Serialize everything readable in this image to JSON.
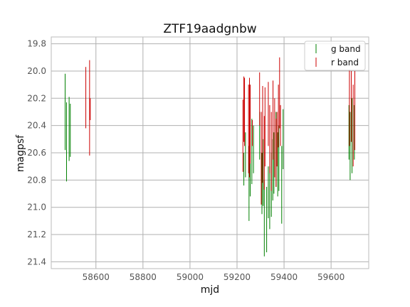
{
  "chart_data": {
    "type": "scatter",
    "title": "ZTF19aadgnbw",
    "xlabel": "mjd",
    "ylabel": "magpsf",
    "xlim": [
      58410,
      59760
    ],
    "ylim": [
      21.45,
      19.75
    ],
    "y_inverted": true,
    "grid": true,
    "legend_position": "top-right",
    "x_ticks": [
      58600,
      58800,
      59000,
      59200,
      59400,
      59600
    ],
    "y_ticks": [
      19.8,
      20.0,
      20.2,
      20.4,
      20.6,
      20.8,
      21.0,
      21.2,
      21.4
    ],
    "x_tick_labels": [
      "58600",
      "58800",
      "59000",
      "59200",
      "59400",
      "59600"
    ],
    "y_tick_labels": [
      "19.8",
      "20.0",
      "20.2",
      "20.4",
      "20.6",
      "20.8",
      "21.0",
      "21.2",
      "21.4"
    ],
    "series": [
      {
        "name": "g band",
        "color": "#008000",
        "marker": "vertical-errorbar",
        "points": [
          {
            "x": 58469,
            "lo": 20.02,
            "hi": 20.58
          },
          {
            "x": 58475,
            "lo": 20.23,
            "hi": 20.81
          },
          {
            "x": 58486,
            "lo": 20.19,
            "hi": 20.66
          },
          {
            "x": 58491,
            "lo": 20.24,
            "hi": 20.63
          },
          {
            "x": 59229,
            "lo": 20.6,
            "hi": 20.84
          },
          {
            "x": 59236,
            "lo": 20.45,
            "hi": 20.78
          },
          {
            "x": 59251,
            "lo": 20.55,
            "hi": 21.1
          },
          {
            "x": 59256,
            "lo": 20.5,
            "hi": 20.92
          },
          {
            "x": 59263,
            "lo": 20.35,
            "hi": 20.83
          },
          {
            "x": 59270,
            "lo": 20.4,
            "hi": 20.75
          },
          {
            "x": 59296,
            "lo": 20.3,
            "hi": 20.65
          },
          {
            "x": 59306,
            "lo": 20.6,
            "hi": 21.05
          },
          {
            "x": 59311,
            "lo": 20.5,
            "hi": 20.99
          },
          {
            "x": 59316,
            "lo": 20.8,
            "hi": 21.36
          },
          {
            "x": 59326,
            "lo": 20.85,
            "hi": 21.33
          },
          {
            "x": 59333,
            "lo": 20.7,
            "hi": 21.08
          },
          {
            "x": 59339,
            "lo": 20.7,
            "hi": 21.16
          },
          {
            "x": 59346,
            "lo": 20.6,
            "hi": 21.07
          },
          {
            "x": 59352,
            "lo": 20.5,
            "hi": 20.95
          },
          {
            "x": 59357,
            "lo": 20.45,
            "hi": 20.9
          },
          {
            "x": 59366,
            "lo": 20.3,
            "hi": 20.85
          },
          {
            "x": 59373,
            "lo": 20.45,
            "hi": 20.92
          },
          {
            "x": 59378,
            "lo": 20.4,
            "hi": 20.88
          },
          {
            "x": 59390,
            "lo": 20.55,
            "hi": 21.12
          },
          {
            "x": 59396,
            "lo": 20.28,
            "hi": 20.72
          },
          {
            "x": 59676,
            "lo": 20.25,
            "hi": 20.65
          },
          {
            "x": 59681,
            "lo": 20.3,
            "hi": 20.8
          },
          {
            "x": 59689,
            "lo": 20.2,
            "hi": 20.75
          },
          {
            "x": 59699,
            "lo": 20.25,
            "hi": 20.65
          }
        ]
      },
      {
        "name": "r band",
        "color": "#cc0000",
        "marker": "vertical-errorbar",
        "points": [
          {
            "x": 58557,
            "lo": 19.97,
            "hi": 20.42
          },
          {
            "x": 58573,
            "lo": 19.92,
            "hi": 20.62
          },
          {
            "x": 58576,
            "lo": 20.2,
            "hi": 20.36
          },
          {
            "x": 59225,
            "lo": 20.21,
            "hi": 20.74
          },
          {
            "x": 59229,
            "lo": 20.04,
            "hi": 20.52
          },
          {
            "x": 59232,
            "lo": 20.05,
            "hi": 20.55
          },
          {
            "x": 59249,
            "lo": 20.1,
            "hi": 20.75
          },
          {
            "x": 59253,
            "lo": 20.05,
            "hi": 20.78
          },
          {
            "x": 59256,
            "lo": 20.1,
            "hi": 20.68
          },
          {
            "x": 59265,
            "lo": 20.36,
            "hi": 20.55
          },
          {
            "x": 59296,
            "lo": 20.01,
            "hi": 20.4
          },
          {
            "x": 59303,
            "lo": 20.3,
            "hi": 20.98
          },
          {
            "x": 59309,
            "lo": 20.11,
            "hi": 20.82
          },
          {
            "x": 59316,
            "lo": 20.33,
            "hi": 20.87
          },
          {
            "x": 59319,
            "lo": 20.12,
            "hi": 20.7
          },
          {
            "x": 59333,
            "lo": 20.08,
            "hi": 20.55
          },
          {
            "x": 59339,
            "lo": 20.25,
            "hi": 20.75
          },
          {
            "x": 59346,
            "lo": 20.3,
            "hi": 20.88
          },
          {
            "x": 59353,
            "lo": 20.07,
            "hi": 20.65
          },
          {
            "x": 59360,
            "lo": 20.2,
            "hi": 20.78
          },
          {
            "x": 59366,
            "lo": 20.35,
            "hi": 20.85
          },
          {
            "x": 59370,
            "lo": 20.3,
            "hi": 20.7
          },
          {
            "x": 59376,
            "lo": 20.1,
            "hi": 20.56
          },
          {
            "x": 59381,
            "lo": 19.9,
            "hi": 20.42
          },
          {
            "x": 59385,
            "lo": 20.25,
            "hi": 20.55
          },
          {
            "x": 59678,
            "lo": 19.99,
            "hi": 20.55
          },
          {
            "x": 59686,
            "lo": 20.0,
            "hi": 20.52
          },
          {
            "x": 59694,
            "lo": 20.1,
            "hi": 20.7
          },
          {
            "x": 59701,
            "lo": 20.0,
            "hi": 20.58
          }
        ]
      }
    ]
  }
}
